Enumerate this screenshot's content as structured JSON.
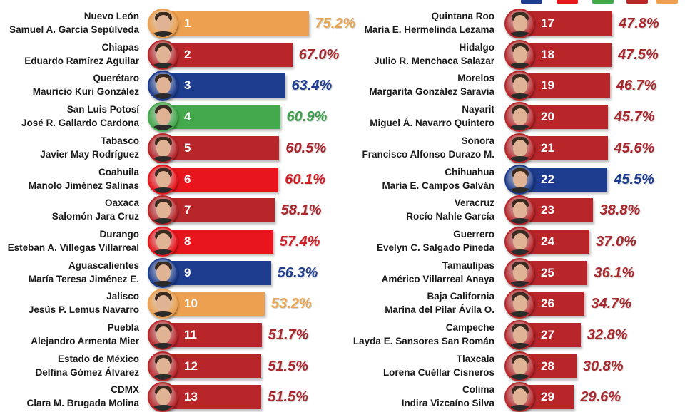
{
  "colors": {
    "orange": "#EDA04F",
    "darkred": "#B8262A",
    "blue": "#1E3D8F",
    "green": "#44A84C",
    "red": "#E8161C"
  },
  "text_colors": {
    "orange": "#E9A552",
    "darkred": "#A8282D",
    "blue": "#1E3D8F",
    "green": "#3E9E4E",
    "red": "#D21E24"
  },
  "legend_swatches": [
    "blue",
    "red",
    "green",
    "darkred",
    "orange"
  ],
  "chart_data": {
    "type": "bar",
    "orientation": "horizontal",
    "unit": "%",
    "rows": [
      {
        "rank": "1",
        "state": "Nuevo León",
        "name": "Samuel A. García Sepúlveda",
        "value": 75.2,
        "label": "75.2%",
        "color": "orange"
      },
      {
        "rank": "2",
        "state": "Chiapas",
        "name": "Eduardo Ramírez Aguilar",
        "value": 67.0,
        "label": "67.0%",
        "color": "darkred"
      },
      {
        "rank": "3",
        "state": "Querétaro",
        "name": "Mauricio Kuri González",
        "value": 63.4,
        "label": "63.4%",
        "color": "blue"
      },
      {
        "rank": "4",
        "state": "San Luis Potosí",
        "name": "José R. Gallardo Cardona",
        "value": 60.9,
        "label": "60.9%",
        "color": "green"
      },
      {
        "rank": "5",
        "state": "Tabasco",
        "name": "Javier May Rodríguez",
        "value": 60.5,
        "label": "60.5%",
        "color": "darkred"
      },
      {
        "rank": "6",
        "state": "Coahuila",
        "name": "Manolo Jiménez Salinas",
        "value": 60.1,
        "label": "60.1%",
        "color": "red"
      },
      {
        "rank": "7",
        "state": "Oaxaca",
        "name": "Salomón Jara Cruz",
        "value": 58.1,
        "label": "58.1%",
        "color": "darkred"
      },
      {
        "rank": "8",
        "state": "Durango",
        "name": "Esteban A. Villegas Villarreal",
        "value": 57.4,
        "label": "57.4%",
        "color": "red"
      },
      {
        "rank": "9",
        "state": "Aguascalientes",
        "name": "María Teresa Jiménez E.",
        "value": 56.3,
        "label": "56.3%",
        "color": "blue"
      },
      {
        "rank": "10",
        "state": "Jalisco",
        "name": "Jesús P. Lemus Navarro",
        "value": 53.2,
        "label": "53.2%",
        "color": "orange"
      },
      {
        "rank": "11",
        "state": "Puebla",
        "name": "Alejandro Armenta Mier",
        "value": 51.7,
        "label": "51.7%",
        "color": "darkred"
      },
      {
        "rank": "12",
        "state": "Estado de México",
        "name": "Delfina Gómez Álvarez",
        "value": 51.5,
        "label": "51.5%",
        "color": "darkred"
      },
      {
        "rank": "13",
        "state": "CDMX",
        "name": "Clara M. Brugada Molina",
        "value": 51.5,
        "label": "51.5%",
        "color": "darkred"
      },
      {
        "rank": "17",
        "state": "Quintana Roo",
        "name": "María E. Hermelinda Lezama",
        "value": 47.8,
        "label": "47.8%",
        "color": "darkred"
      },
      {
        "rank": "18",
        "state": "Hidalgo",
        "name": "Julio R. Menchaca Salazar",
        "value": 47.5,
        "label": "47.5%",
        "color": "darkred"
      },
      {
        "rank": "19",
        "state": "Morelos",
        "name": "Margarita González Saravia",
        "value": 46.7,
        "label": "46.7%",
        "color": "darkred"
      },
      {
        "rank": "20",
        "state": "Nayarit",
        "name": "Miguel Á. Navarro Quintero",
        "value": 45.7,
        "label": "45.7%",
        "color": "darkred"
      },
      {
        "rank": "21",
        "state": "Sonora",
        "name": "Francisco Alfonso Durazo M.",
        "value": 45.6,
        "label": "45.6%",
        "color": "darkred"
      },
      {
        "rank": "22",
        "state": "Chihuahua",
        "name": "María E. Campos Galván",
        "value": 45.5,
        "label": "45.5%",
        "color": "blue"
      },
      {
        "rank": "23",
        "state": "Veracruz",
        "name": "Rocío Nahle García",
        "value": 38.8,
        "label": "38.8%",
        "color": "darkred"
      },
      {
        "rank": "24",
        "state": "Guerrero",
        "name": "Evelyn C. Salgado Pineda",
        "value": 37.0,
        "label": "37.0%",
        "color": "darkred"
      },
      {
        "rank": "25",
        "state": "Tamaulipas",
        "name": "Américo Villarreal  Anaya",
        "value": 36.1,
        "label": "36.1%",
        "color": "darkred"
      },
      {
        "rank": "26",
        "state": "Baja California",
        "name": "Marina del Pilar Ávila O.",
        "value": 34.7,
        "label": "34.7%",
        "color": "darkred"
      },
      {
        "rank": "27",
        "state": "Campeche",
        "name": "Layda E. Sansores San Román",
        "value": 32.8,
        "label": "32.8%",
        "color": "darkred"
      },
      {
        "rank": "28",
        "state": "Tlaxcala",
        "name": "Lorena Cuéllar Cisneros",
        "value": 30.8,
        "label": "30.8%",
        "color": "darkred"
      },
      {
        "rank": "29",
        "state": "Colima",
        "name": "Indira Vizcaíno Silva",
        "value": 29.6,
        "label": "29.6%",
        "color": "darkred"
      }
    ]
  }
}
